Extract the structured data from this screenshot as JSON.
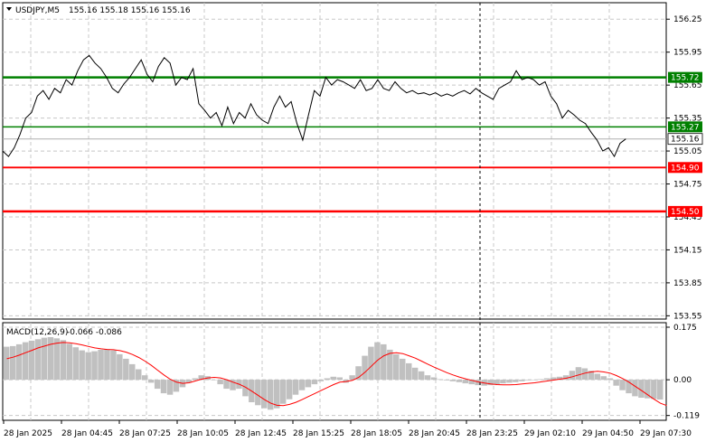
{
  "header": {
    "symbol": "USDJPY,M5",
    "ohlc": "155.16 155.18 155.16 155.16"
  },
  "macd_header": {
    "label": "MACD(12,26,9)",
    "values": "-0.066 -0.086"
  },
  "colors": {
    "price_line": "#000000",
    "support_green": "#008000",
    "resist_red": "#ff0000",
    "macd_hist": "#c0c0c0",
    "signal_line": "#ff0000",
    "grid": "#c8c8c8"
  },
  "chart_data": [
    {
      "type": "line",
      "name": "price",
      "y_ticks": [
        "156.25",
        "155.95",
        "155.65",
        "155.35",
        "155.05",
        "154.75",
        "154.45",
        "154.15",
        "153.85",
        "153.55"
      ],
      "ylim": [
        153.52,
        156.4
      ],
      "x_ticks": [
        "28 Jan 2025",
        "28 Jan 04:45",
        "28 Jan 07:25",
        "28 Jan 10:05",
        "28 Jan 12:45",
        "28 Jan 15:25",
        "28 Jan 18:05",
        "28 Jan 20:45",
        "28 Jan 23:25",
        "29 Jan 02:10",
        "29 Jan 04:50",
        "29 Jan 07:30"
      ],
      "xlim": [
        0,
        230
      ],
      "values": [
        [
          0,
          155.05
        ],
        [
          2,
          155.0
        ],
        [
          4,
          155.08
        ],
        [
          6,
          155.2
        ],
        [
          8,
          155.35
        ],
        [
          10,
          155.4
        ],
        [
          12,
          155.55
        ],
        [
          14,
          155.6
        ],
        [
          16,
          155.52
        ],
        [
          18,
          155.62
        ],
        [
          20,
          155.58
        ],
        [
          22,
          155.7
        ],
        [
          24,
          155.65
        ],
        [
          26,
          155.78
        ],
        [
          28,
          155.88
        ],
        [
          30,
          155.92
        ],
        [
          32,
          155.85
        ],
        [
          34,
          155.8
        ],
        [
          36,
          155.72
        ],
        [
          38,
          155.62
        ],
        [
          40,
          155.58
        ],
        [
          42,
          155.66
        ],
        [
          44,
          155.72
        ],
        [
          46,
          155.8
        ],
        [
          48,
          155.88
        ],
        [
          50,
          155.75
        ],
        [
          52,
          155.68
        ],
        [
          54,
          155.82
        ],
        [
          56,
          155.9
        ],
        [
          58,
          155.85
        ],
        [
          60,
          155.65
        ],
        [
          62,
          155.72
        ],
        [
          64,
          155.7
        ],
        [
          66,
          155.8
        ],
        [
          68,
          155.48
        ],
        [
          70,
          155.42
        ],
        [
          72,
          155.35
        ],
        [
          74,
          155.4
        ],
        [
          76,
          155.28
        ],
        [
          78,
          155.45
        ],
        [
          80,
          155.3
        ],
        [
          82,
          155.4
        ],
        [
          84,
          155.35
        ],
        [
          86,
          155.48
        ],
        [
          88,
          155.38
        ],
        [
          90,
          155.33
        ],
        [
          92,
          155.3
        ],
        [
          94,
          155.45
        ],
        [
          96,
          155.55
        ],
        [
          98,
          155.45
        ],
        [
          100,
          155.5
        ],
        [
          102,
          155.3
        ],
        [
          104,
          155.15
        ],
        [
          106,
          155.38
        ],
        [
          108,
          155.6
        ],
        [
          110,
          155.55
        ],
        [
          112,
          155.72
        ],
        [
          114,
          155.65
        ],
        [
          116,
          155.7
        ],
        [
          118,
          155.68
        ],
        [
          120,
          155.65
        ],
        [
          122,
          155.62
        ],
        [
          124,
          155.7
        ],
        [
          126,
          155.6
        ],
        [
          128,
          155.62
        ],
        [
          130,
          155.7
        ],
        [
          132,
          155.62
        ],
        [
          134,
          155.6
        ],
        [
          136,
          155.68
        ],
        [
          138,
          155.62
        ],
        [
          140,
          155.58
        ],
        [
          142,
          155.6
        ],
        [
          144,
          155.57
        ],
        [
          146,
          155.58
        ],
        [
          148,
          155.56
        ],
        [
          150,
          155.58
        ],
        [
          152,
          155.55
        ],
        [
          154,
          155.57
        ],
        [
          156,
          155.55
        ],
        [
          158,
          155.58
        ],
        [
          160,
          155.6
        ],
        [
          162,
          155.57
        ],
        [
          164,
          155.62
        ],
        [
          166,
          155.58
        ],
        [
          168,
          155.55
        ],
        [
          170,
          155.52
        ],
        [
          172,
          155.62
        ],
        [
          174,
          155.65
        ],
        [
          176,
          155.68
        ],
        [
          178,
          155.78
        ],
        [
          180,
          155.7
        ],
        [
          182,
          155.72
        ],
        [
          184,
          155.7
        ],
        [
          186,
          155.65
        ],
        [
          188,
          155.68
        ],
        [
          190,
          155.55
        ],
        [
          192,
          155.48
        ],
        [
          194,
          155.35
        ],
        [
          196,
          155.42
        ],
        [
          198,
          155.38
        ],
        [
          200,
          155.33
        ],
        [
          202,
          155.3
        ],
        [
          204,
          155.22
        ],
        [
          206,
          155.15
        ],
        [
          208,
          155.05
        ],
        [
          210,
          155.08
        ],
        [
          212,
          155.0
        ],
        [
          214,
          155.12
        ],
        [
          216,
          155.16
        ]
      ],
      "levels": [
        {
          "value": 155.72,
          "label": "155.72",
          "color": "#008000",
          "width": 2.5
        },
        {
          "value": 155.27,
          "label": "155.27",
          "color": "#008000",
          "width": 1.5
        },
        {
          "value": 154.9,
          "label": "154.90",
          "color": "#ff0000",
          "width": 1.8
        },
        {
          "value": 154.5,
          "label": "154.50",
          "color": "#ff0000",
          "width": 2.5
        }
      ],
      "current_price": {
        "value": 155.16,
        "label": "155.16"
      }
    },
    {
      "type": "bar",
      "name": "MACD",
      "y_ticks": [
        "0.175",
        "0.00",
        "-0.119"
      ],
      "ylim": [
        -0.135,
        0.19
      ],
      "histogram": [
        0.11,
        0.112,
        0.118,
        0.125,
        0.13,
        0.135,
        0.14,
        0.142,
        0.138,
        0.132,
        0.12,
        0.108,
        0.098,
        0.092,
        0.095,
        0.1,
        0.102,
        0.098,
        0.085,
        0.07,
        0.052,
        0.035,
        0.015,
        -0.01,
        -0.03,
        -0.045,
        -0.05,
        -0.04,
        -0.025,
        -0.01,
        0.005,
        0.015,
        0.012,
        0.0,
        -0.015,
        -0.03,
        -0.035,
        -0.03,
        -0.055,
        -0.075,
        -0.085,
        -0.095,
        -0.1,
        -0.095,
        -0.08,
        -0.065,
        -0.05,
        -0.035,
        -0.025,
        -0.015,
        -0.005,
        0.005,
        0.01,
        0.008,
        -0.01,
        0.015,
        0.045,
        0.08,
        0.11,
        0.125,
        0.118,
        0.1,
        0.085,
        0.07,
        0.055,
        0.04,
        0.028,
        0.015,
        0.008,
        0.002,
        -0.002,
        -0.005,
        -0.008,
        -0.012,
        -0.015,
        -0.018,
        -0.02,
        -0.018,
        -0.015,
        -0.012,
        -0.01,
        -0.008,
        -0.005,
        -0.002,
        0.0,
        0.002,
        0.005,
        0.008,
        0.01,
        0.015,
        0.03,
        0.042,
        0.038,
        0.03,
        0.02,
        0.012,
        0.005,
        -0.02,
        -0.035,
        -0.045,
        -0.055,
        -0.06,
        -0.062,
        -0.064,
        -0.066
      ],
      "signal": [
        0.07,
        0.075,
        0.082,
        0.09,
        0.098,
        0.106,
        0.112,
        0.118,
        0.122,
        0.124,
        0.123,
        0.12,
        0.116,
        0.111,
        0.106,
        0.103,
        0.101,
        0.1,
        0.097,
        0.092,
        0.084,
        0.074,
        0.062,
        0.048,
        0.032,
        0.016,
        0.002,
        -0.008,
        -0.012,
        -0.01,
        -0.004,
        0.002,
        0.006,
        0.008,
        0.006,
        0.0,
        -0.008,
        -0.015,
        -0.025,
        -0.038,
        -0.052,
        -0.066,
        -0.078,
        -0.085,
        -0.086,
        -0.082,
        -0.075,
        -0.066,
        -0.056,
        -0.046,
        -0.036,
        -0.026,
        -0.016,
        -0.008,
        -0.006,
        -0.002,
        0.008,
        0.025,
        0.045,
        0.065,
        0.08,
        0.088,
        0.09,
        0.087,
        0.08,
        0.072,
        0.062,
        0.052,
        0.042,
        0.033,
        0.024,
        0.016,
        0.009,
        0.003,
        -0.002,
        -0.007,
        -0.011,
        -0.014,
        -0.016,
        -0.017,
        -0.017,
        -0.016,
        -0.014,
        -0.012,
        -0.01,
        -0.007,
        -0.004,
        -0.001,
        0.002,
        0.005,
        0.01,
        0.016,
        0.022,
        0.026,
        0.028,
        0.026,
        0.022,
        0.014,
        0.004,
        -0.008,
        -0.022,
        -0.036,
        -0.05,
        -0.065,
        -0.078,
        -0.086
      ]
    }
  ]
}
